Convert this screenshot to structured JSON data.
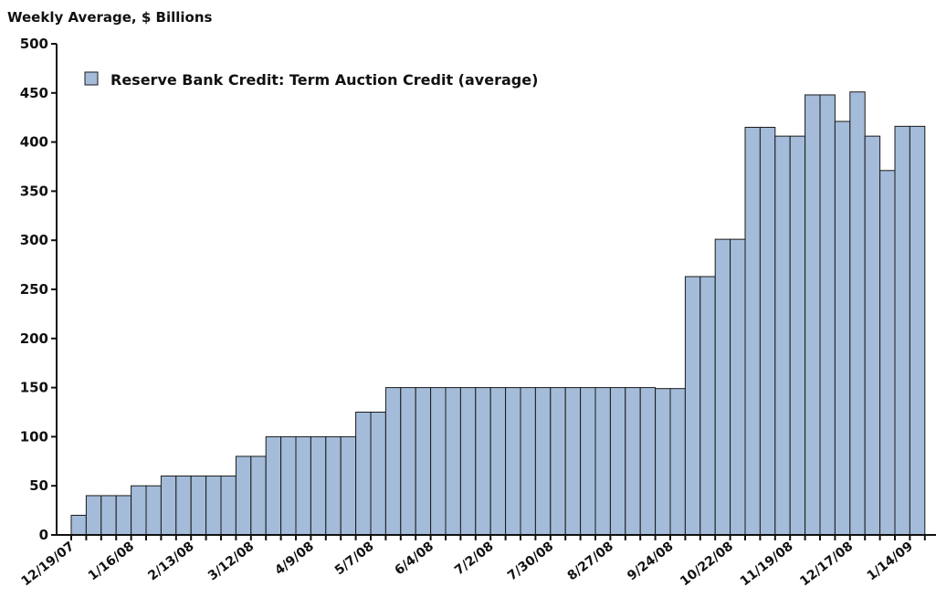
{
  "chart_data": {
    "type": "bar",
    "title": "",
    "ylabel": "Weekly Average, $ Billions",
    "xlabel": "",
    "ylim": [
      0,
      500
    ],
    "yticks": [
      0,
      50,
      100,
      150,
      200,
      250,
      300,
      350,
      400,
      450,
      500
    ],
    "grid": false,
    "legend_placement": "top-left",
    "bar_color": "#a4bcd9",
    "xtick_labels": [
      "12/19/07",
      "1/16/08",
      "2/13/08",
      "3/12/08",
      "4/9/08",
      "5/7/08",
      "6/4/08",
      "7/2/08",
      "7/30/08",
      "8/27/08",
      "9/24/08",
      "10/22/08",
      "11/19/08",
      "12/17/08",
      "1/14/09"
    ],
    "xtick_every": 4,
    "series": [
      {
        "name": "Reserve Bank Credit: Term Auction Credit (average)",
        "values": [
          20,
          40,
          40,
          40,
          50,
          50,
          60,
          60,
          60,
          60,
          60,
          80,
          80,
          100,
          100,
          100,
          100,
          100,
          100,
          125,
          125,
          150,
          150,
          150,
          150,
          150,
          150,
          150,
          150,
          150,
          150,
          150,
          150,
          150,
          150,
          150,
          150,
          150,
          150,
          149,
          149,
          263,
          263,
          301,
          301,
          415,
          415,
          406,
          406,
          448,
          448,
          421,
          451,
          406,
          371,
          416,
          416
        ]
      }
    ]
  }
}
